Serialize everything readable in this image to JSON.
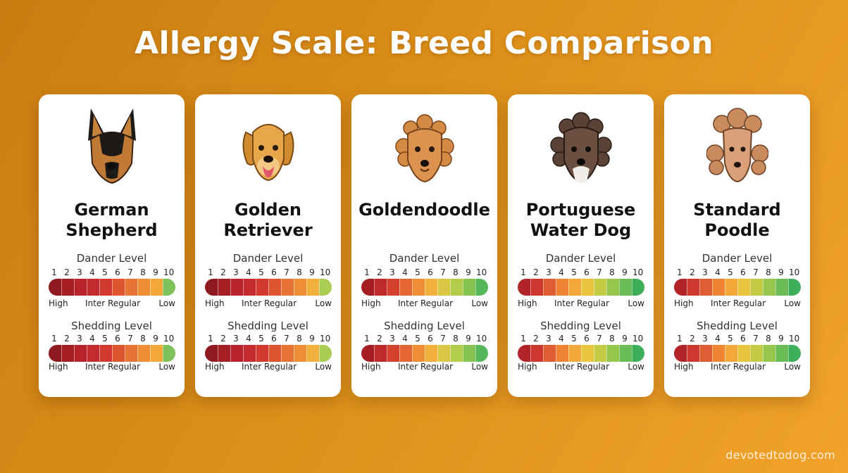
{
  "page": {
    "title": "Allergy Scale: Breed Comparison",
    "watermark": "devotedtodog.com"
  },
  "scale_numbers": [
    "1",
    "2",
    "3",
    "4",
    "5",
    "6",
    "7",
    "8",
    "9",
    "10"
  ],
  "labels": {
    "dander": "Dander Level",
    "shedding": "Shedding Level",
    "high": "High",
    "inter": "Inter Regular",
    "low": "Low"
  },
  "breeds": [
    {
      "name_line1": "German",
      "name_line2": "Shepherd",
      "icon": "german-shepherd-icon",
      "dander_colors": [
        "#8e1a1f",
        "#a51e23",
        "#b7232a",
        "#c42b2e",
        "#d23a30",
        "#de5532",
        "#e87134",
        "#ef8e35",
        "#f2a93a",
        "#7fc15a"
      ],
      "shedding_colors": [
        "#8e1a1f",
        "#a51e23",
        "#b7232a",
        "#c42b2e",
        "#d23a30",
        "#de5532",
        "#e87134",
        "#ef8e35",
        "#f2a93a",
        "#7fc15a"
      ]
    },
    {
      "name_line1": "Golden",
      "name_line2": "Retriever",
      "icon": "golden-retriever-icon",
      "dander_colors": [
        "#8e1a1f",
        "#a51e23",
        "#b7232a",
        "#c42b2e",
        "#d23a30",
        "#de5532",
        "#e87134",
        "#ef8e35",
        "#f2b03c",
        "#a9cc52"
      ],
      "shedding_colors": [
        "#8e1a1f",
        "#a51e23",
        "#b7232a",
        "#c42b2e",
        "#d23a30",
        "#de5532",
        "#e87134",
        "#ef8e35",
        "#f2b03c",
        "#a9cc52"
      ]
    },
    {
      "name_line1": "Goldendoodle",
      "name_line2": "",
      "icon": "goldendoodle-icon",
      "dander_colors": [
        "#a51e23",
        "#bf2a2c",
        "#d4422f",
        "#e36633",
        "#ef8e35",
        "#f2b03c",
        "#dcc645",
        "#b3cc4a",
        "#86c452",
        "#55b65a"
      ],
      "shedding_colors": [
        "#a51e23",
        "#bf2a2c",
        "#d4422f",
        "#e36633",
        "#ef8e35",
        "#f2b03c",
        "#dcc645",
        "#b3cc4a",
        "#86c452",
        "#55b65a"
      ]
    },
    {
      "name_line1": "Portuguese",
      "name_line2": "Water Dog",
      "icon": "portuguese-water-dog-icon",
      "dander_colors": [
        "#b0242a",
        "#cc382e",
        "#e05c32",
        "#ee8434",
        "#f2a93a",
        "#e8c43f",
        "#c4cc45",
        "#97c64d",
        "#68bb55",
        "#3fae5b"
      ],
      "shedding_colors": [
        "#b0242a",
        "#cc382e",
        "#e05c32",
        "#ee8434",
        "#f2a93a",
        "#e8c43f",
        "#c4cc45",
        "#97c64d",
        "#68bb55",
        "#3fae5b"
      ]
    },
    {
      "name_line1": "Standard",
      "name_line2": "Poodle",
      "icon": "standard-poodle-icon",
      "dander_colors": [
        "#b0242a",
        "#cc382e",
        "#e05c32",
        "#ee8434",
        "#f2a93a",
        "#e8c43f",
        "#c4cc45",
        "#97c64d",
        "#68bb55",
        "#3fae5b"
      ],
      "shedding_colors": [
        "#b0242a",
        "#cc382e",
        "#e05c32",
        "#ee8434",
        "#f2a93a",
        "#e8c43f",
        "#c4cc45",
        "#97c64d",
        "#68bb55",
        "#3fae5b"
      ]
    }
  ]
}
